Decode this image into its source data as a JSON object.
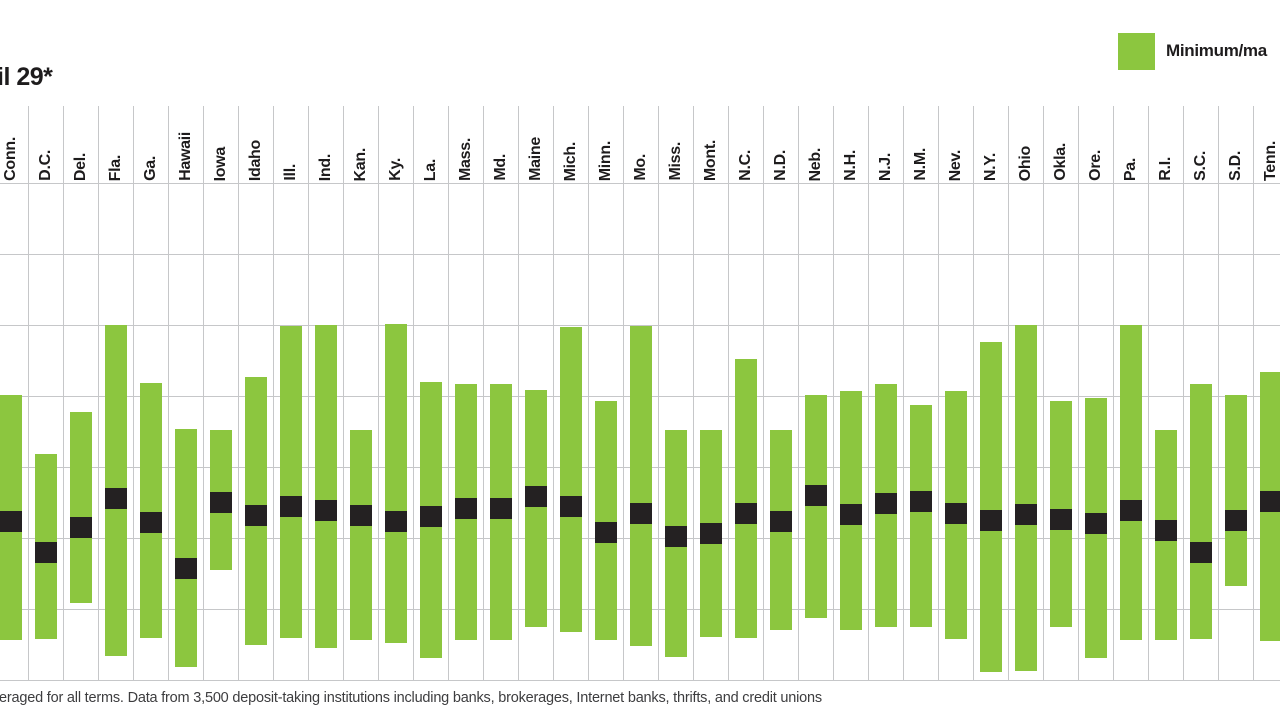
{
  "title_fragment": "il 29*",
  "legend": {
    "label": "Minimum/ma",
    "swatch_color": "#8CC63F"
  },
  "footnote": {
    "text": "eraged for all terms. Data from 3,500 deposit-taking institutions including banks, brokerages, Internet banks, thrifts, and credit unions"
  },
  "colors": {
    "bar_green": "#8CC63F",
    "marker_black": "#242122",
    "grid": "#c6c7c9",
    "label_text": "#1e1c1d",
    "footnote_text": "#3d3d3f"
  },
  "chart_data": {
    "type": "bar",
    "subtype": "floating-range-bars-with-median-marker",
    "note": "Left axis labels and full title are cropped out of the screenshot; values are expressed in visible horizontal-gridline units (0 = bottom gridline, 7 = top gridline). Green bar spans min-to-max; black block marks the mid/median value.",
    "ylim": [
      0,
      7
    ],
    "grid": true,
    "legend_position": "top-right",
    "legend_entries": [
      "Minimum/ma"
    ],
    "categories": [
      "Conn.",
      "D.C.",
      "Del.",
      "Fla.",
      "Ga.",
      "Hawaii",
      "Iowa",
      "Idaho",
      "Ill.",
      "Ind.",
      "Kan.",
      "Ky.",
      "La.",
      "Mass.",
      "Md.",
      "Maine",
      "Mich.",
      "Minn.",
      "Mo.",
      "Miss.",
      "Mont.",
      "N.C.",
      "N.D.",
      "Neb.",
      "N.H.",
      "N.J.",
      "N.M.",
      "Nev.",
      "N.Y.",
      "Ohio",
      "Okla.",
      "Ore.",
      "Pa.",
      "R.I.",
      "S.C.",
      "S.D.",
      "Tenn."
    ],
    "states": [
      {
        "label": "Conn.",
        "max": 4.01,
        "min": 0.56,
        "mid": 2.23
      },
      {
        "label": "D.C.",
        "max": 3.18,
        "min": 0.58,
        "mid": 1.79
      },
      {
        "label": "Del.",
        "max": 3.77,
        "min": 1.08,
        "mid": 2.15
      },
      {
        "label": "Fla.",
        "max": 5.0,
        "min": 0.34,
        "mid": 2.56
      },
      {
        "label": "Ga.",
        "max": 4.18,
        "min": 0.59,
        "mid": 2.22
      },
      {
        "label": "Hawaii",
        "max": 3.54,
        "min": 0.18,
        "mid": 1.57
      },
      {
        "label": "Iowa",
        "max": 3.52,
        "min": 1.55,
        "mid": 2.5
      },
      {
        "label": "Idaho",
        "max": 4.27,
        "min": 0.49,
        "mid": 2.31
      },
      {
        "label": "Ill.",
        "max": 4.99,
        "min": 0.59,
        "mid": 2.45
      },
      {
        "label": "Ind.",
        "max": 5.0,
        "min": 0.45,
        "mid": 2.39
      },
      {
        "label": "Kan.",
        "max": 3.52,
        "min": 0.56,
        "mid": 2.32
      },
      {
        "label": "Ky.",
        "max": 5.01,
        "min": 0.52,
        "mid": 2.23
      },
      {
        "label": "La.",
        "max": 4.2,
        "min": 0.31,
        "mid": 2.3
      },
      {
        "label": "Mass.",
        "max": 4.17,
        "min": 0.56,
        "mid": 2.42
      },
      {
        "label": "Md.",
        "max": 4.17,
        "min": 0.56,
        "mid": 2.41
      },
      {
        "label": "Maine",
        "max": 4.08,
        "min": 0.75,
        "mid": 2.59
      },
      {
        "label": "Mich.",
        "max": 4.97,
        "min": 0.68,
        "mid": 2.45
      },
      {
        "label": "Minn.",
        "max": 3.93,
        "min": 0.56,
        "mid": 2.08
      },
      {
        "label": "Mo.",
        "max": 4.99,
        "min": 0.48,
        "mid": 2.34
      },
      {
        "label": "Miss.",
        "max": 3.52,
        "min": 0.32,
        "mid": 2.02
      },
      {
        "label": "Mont.",
        "max": 3.52,
        "min": 0.61,
        "mid": 2.06
      },
      {
        "label": "N.C.",
        "max": 4.52,
        "min": 0.59,
        "mid": 2.34
      },
      {
        "label": "N.D.",
        "max": 3.52,
        "min": 0.7,
        "mid": 2.23
      },
      {
        "label": "Neb.",
        "max": 4.01,
        "min": 0.87,
        "mid": 2.6
      },
      {
        "label": "N.H.",
        "max": 4.07,
        "min": 0.7,
        "mid": 2.33
      },
      {
        "label": "N.J.",
        "max": 4.17,
        "min": 0.75,
        "mid": 2.49
      },
      {
        "label": "N.M.",
        "max": 3.87,
        "min": 0.75,
        "mid": 2.51
      },
      {
        "label": "Nev.",
        "max": 4.07,
        "min": 0.58,
        "mid": 2.34
      },
      {
        "label": "N.Y.",
        "max": 4.76,
        "min": 0.11,
        "mid": 2.24
      },
      {
        "label": "Ohio",
        "max": 5.0,
        "min": 0.13,
        "mid": 2.33
      },
      {
        "label": "Okla.",
        "max": 3.93,
        "min": 0.75,
        "mid": 2.26
      },
      {
        "label": "Ore.",
        "max": 3.97,
        "min": 0.31,
        "mid": 2.2
      },
      {
        "label": "Pa.",
        "max": 5.0,
        "min": 0.56,
        "mid": 2.39
      },
      {
        "label": "R.I.",
        "max": 3.52,
        "min": 0.56,
        "mid": 2.11
      },
      {
        "label": "S.C.",
        "max": 4.17,
        "min": 0.58,
        "mid": 1.8
      },
      {
        "label": "S.D.",
        "max": 4.01,
        "min": 1.32,
        "mid": 2.25
      },
      {
        "label": "Tenn.",
        "max": 4.34,
        "min": 0.55,
        "mid": 2.52
      }
    ]
  }
}
